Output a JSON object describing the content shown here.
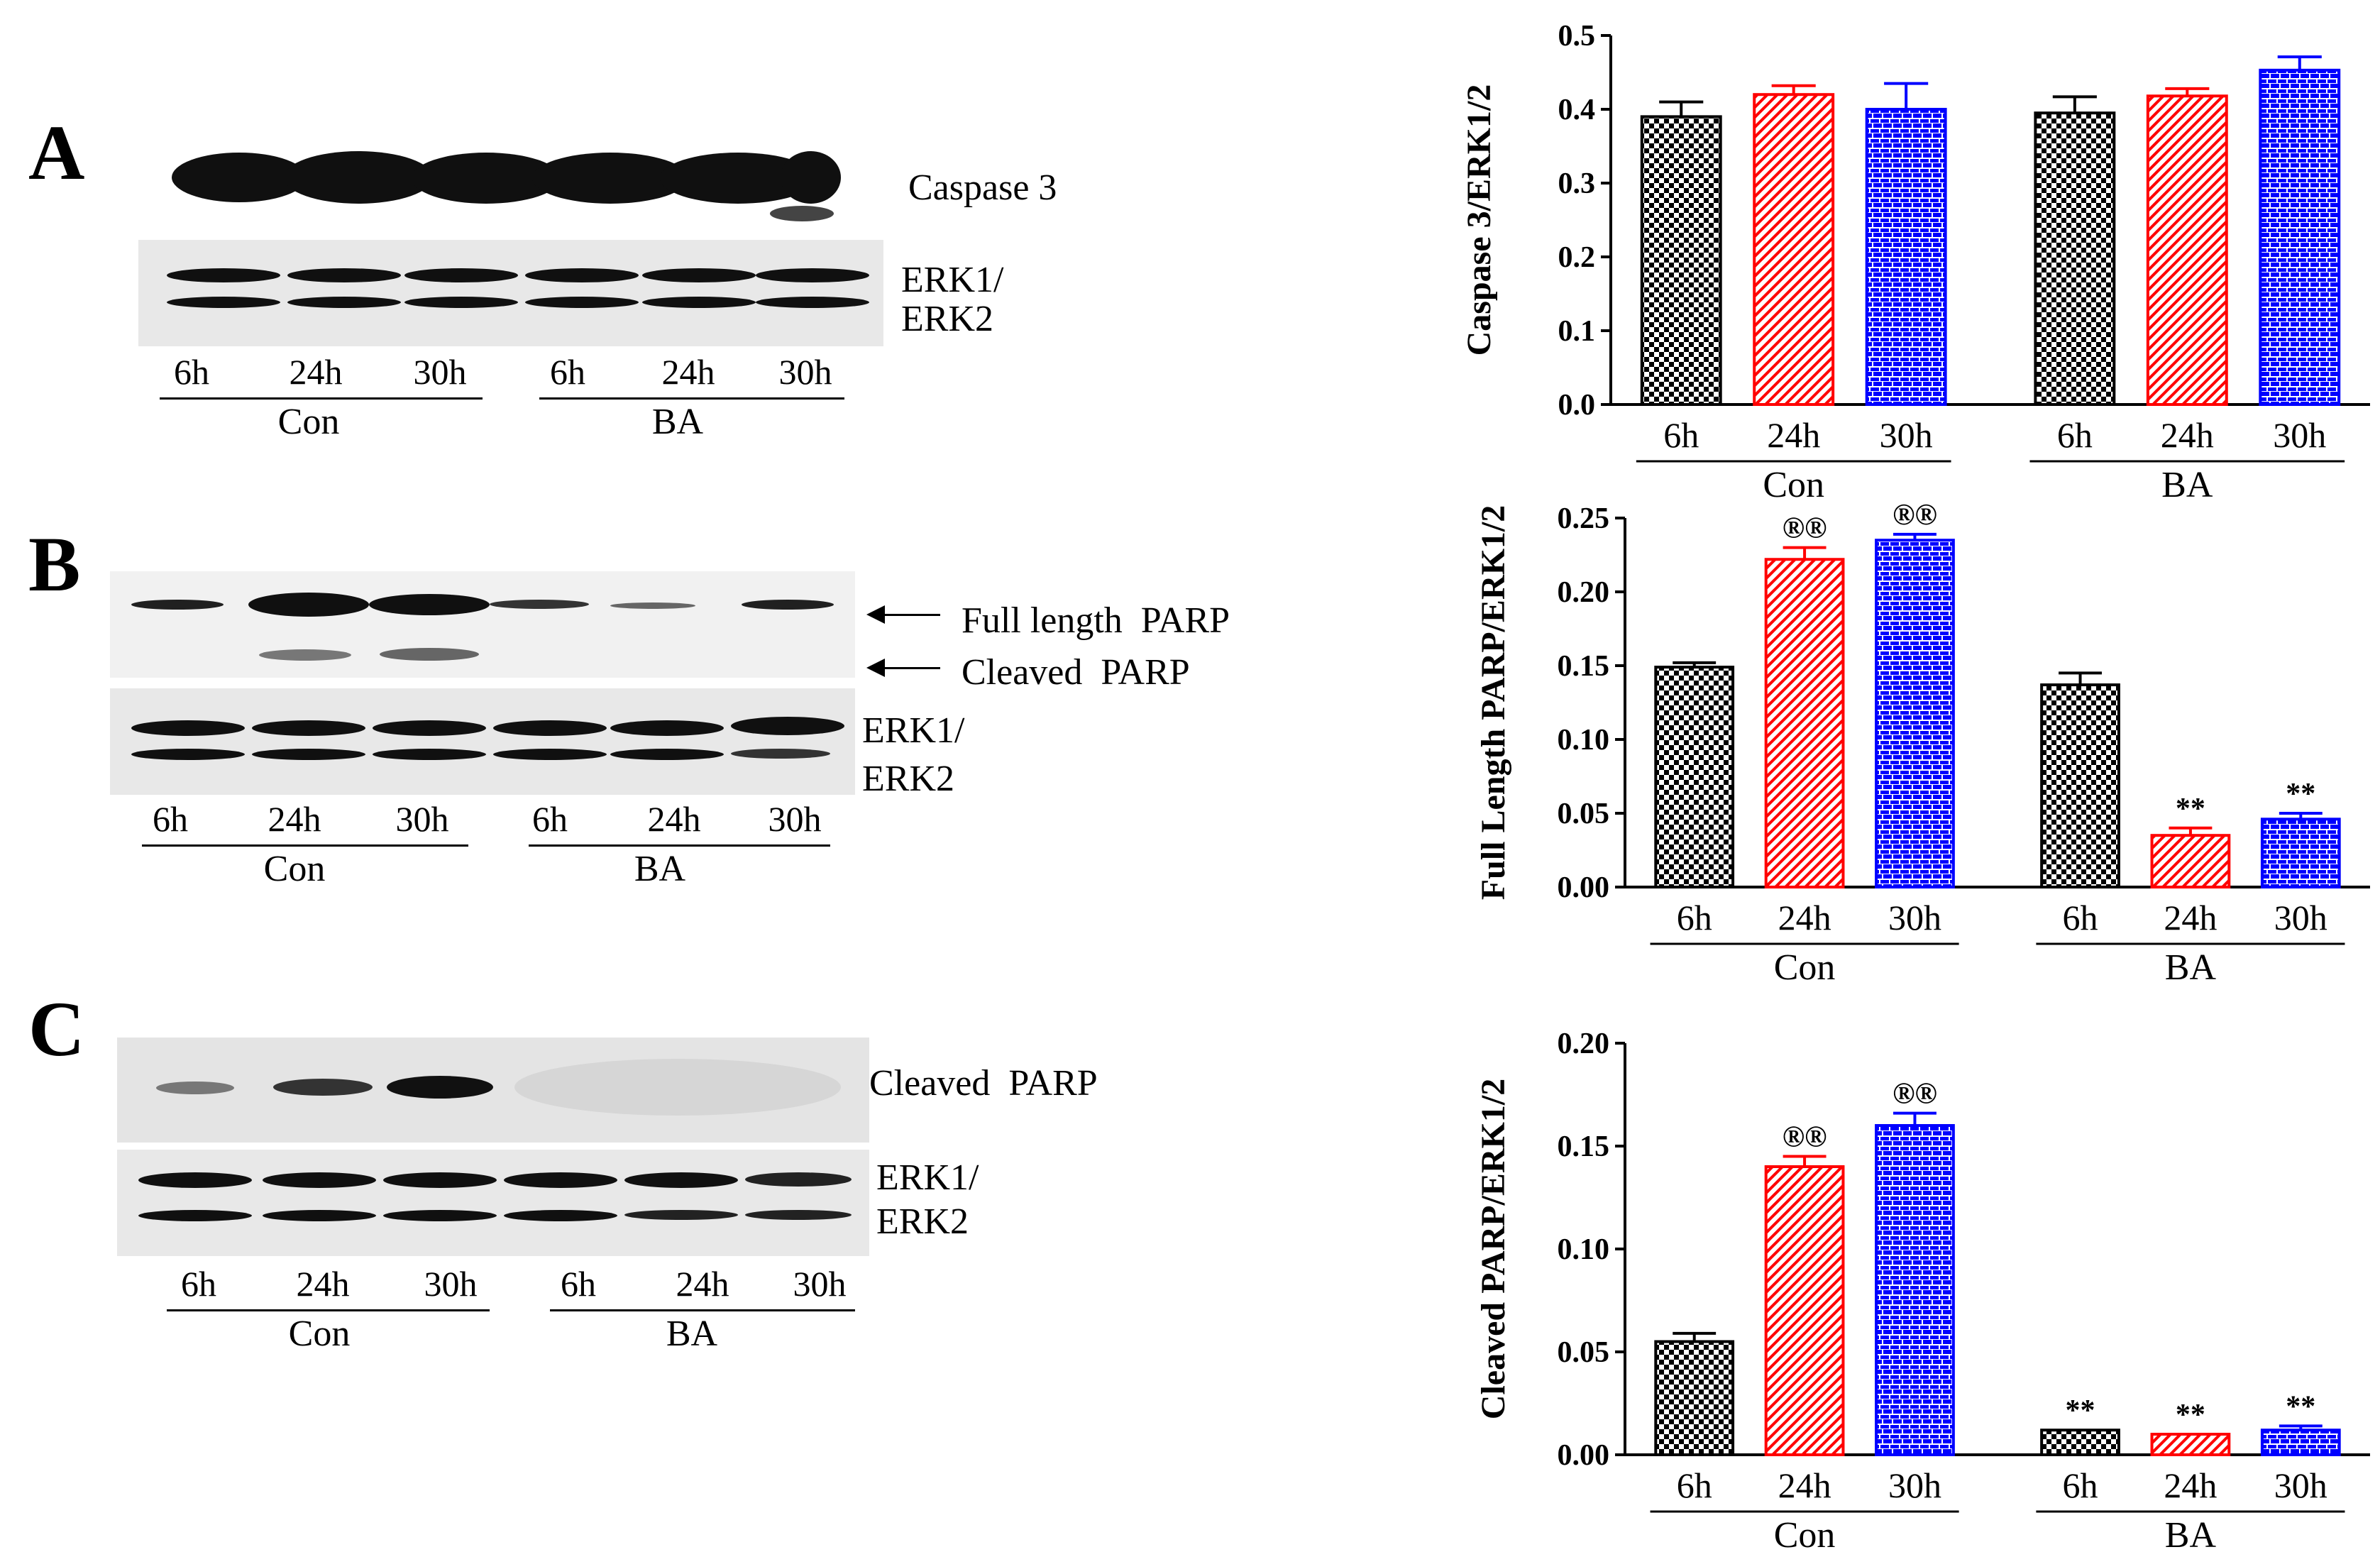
{
  "panels": [
    {
      "letter": "A",
      "target_label": "Caspase 3",
      "loading_label_1": "ERK1/",
      "loading_label_2": "ERK2",
      "lanes": [
        "6h",
        "24h",
        "30h",
        "6h",
        "24h",
        "30h"
      ],
      "groups": [
        "Con",
        "BA"
      ]
    },
    {
      "letter": "B",
      "target_label": "Full length  PARP",
      "target_label_2": "Cleaved  PARP",
      "loading_label_1": "ERK1/",
      "loading_label_2": "ERK2",
      "lanes": [
        "6h",
        "24h",
        "30h",
        "6h",
        "24h",
        "30h"
      ],
      "groups": [
        "Con",
        "BA"
      ]
    },
    {
      "letter": "C",
      "target_label": "Cleaved  PARP",
      "loading_label_1": "ERK1/",
      "loading_label_2": "ERK2",
      "lanes": [
        "6h",
        "24h",
        "30h",
        "6h",
        "24h",
        "30h"
      ],
      "groups": [
        "Con",
        "BA"
      ]
    }
  ],
  "chart_data": [
    {
      "type": "bar",
      "ylabel": "Caspase 3/ERK1/2",
      "ylim": [
        0,
        0.5
      ],
      "yticks": [
        "0.0",
        "0.1",
        "0.2",
        "0.3",
        "0.4",
        "0.5"
      ],
      "categories": [
        "6h",
        "24h",
        "30h",
        "6h",
        "24h",
        "30h"
      ],
      "groups": [
        "Con",
        "BA"
      ],
      "values": [
        0.39,
        0.42,
        0.4,
        0.395,
        0.418,
        0.453
      ],
      "errors": [
        0.02,
        0.012,
        0.035,
        0.022,
        0.01,
        0.018
      ],
      "annotations": [
        "",
        "",
        "",
        "",
        "",
        ""
      ],
      "bar_colors": [
        "#000000",
        "#ff0000",
        "#0000ff",
        "#000000",
        "#ff0000",
        "#0000ff"
      ]
    },
    {
      "type": "bar",
      "ylabel": "Full Length PARP/ERK1/2",
      "ylim": [
        0,
        0.25
      ],
      "yticks": [
        "0.00",
        "0.05",
        "0.10",
        "0.15",
        "0.20",
        "0.25"
      ],
      "categories": [
        "6h",
        "24h",
        "30h",
        "6h",
        "24h",
        "30h"
      ],
      "groups": [
        "Con",
        "BA"
      ],
      "values": [
        0.149,
        0.222,
        0.235,
        0.137,
        0.035,
        0.046
      ],
      "errors": [
        0.003,
        0.008,
        0.004,
        0.008,
        0.005,
        0.004
      ],
      "annotations": [
        "",
        "®®",
        "®®",
        "",
        "**",
        "**"
      ],
      "bar_colors": [
        "#000000",
        "#ff0000",
        "#0000ff",
        "#000000",
        "#ff0000",
        "#0000ff"
      ]
    },
    {
      "type": "bar",
      "ylabel": "Cleaved PARP/ERK1/2",
      "ylim": [
        0,
        0.2
      ],
      "yticks": [
        "0.00",
        "0.05",
        "0.10",
        "0.15",
        "0.20"
      ],
      "categories": [
        "6h",
        "24h",
        "30h",
        "6h",
        "24h",
        "30h"
      ],
      "groups": [
        "Con",
        "BA"
      ],
      "values": [
        0.055,
        0.14,
        0.16,
        0.012,
        0.01,
        0.012
      ],
      "errors": [
        0.004,
        0.005,
        0.006,
        0.0,
        0.0,
        0.002
      ],
      "annotations": [
        "",
        "®®",
        "®®",
        "**",
        "**",
        "**"
      ],
      "bar_colors": [
        "#000000",
        "#ff0000",
        "#0000ff",
        "#000000",
        "#ff0000",
        "#0000ff"
      ]
    }
  ]
}
